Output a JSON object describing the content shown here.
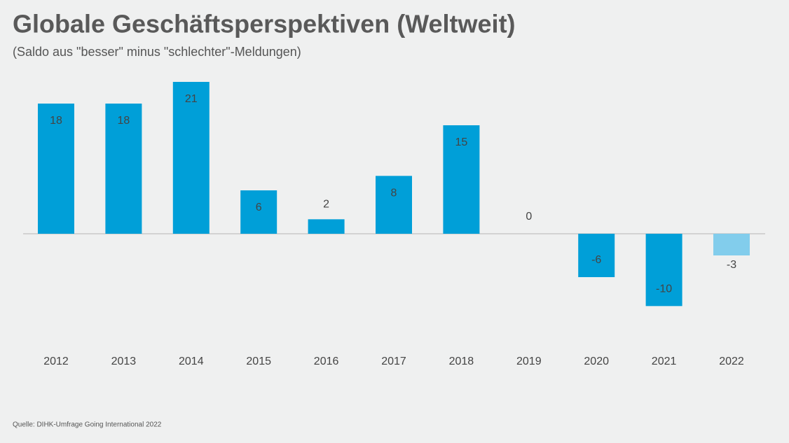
{
  "chart_data": {
    "type": "bar",
    "title": "Globale Geschäftsperspektiven (Weltweit)",
    "subtitle": "(Saldo aus \"besser\" minus \"schlechter\"-Meldungen)",
    "source": "Quelle: DIHK-Umfrage Going International 2022",
    "categories": [
      "2012",
      "2013",
      "2014",
      "2015",
      "2016",
      "2017",
      "2018",
      "2019",
      "2020",
      "2021",
      "2022"
    ],
    "values": [
      18,
      18,
      21,
      6,
      2,
      8,
      15,
      0,
      -6,
      -10,
      -3
    ],
    "colors": [
      "#009fd8",
      "#009fd8",
      "#009fd8",
      "#009fd8",
      "#009fd8",
      "#009fd8",
      "#009fd8",
      "#009fd8",
      "#009fd8",
      "#009fd8",
      "#82cdec"
    ],
    "ylim": [
      -12,
      24
    ]
  }
}
